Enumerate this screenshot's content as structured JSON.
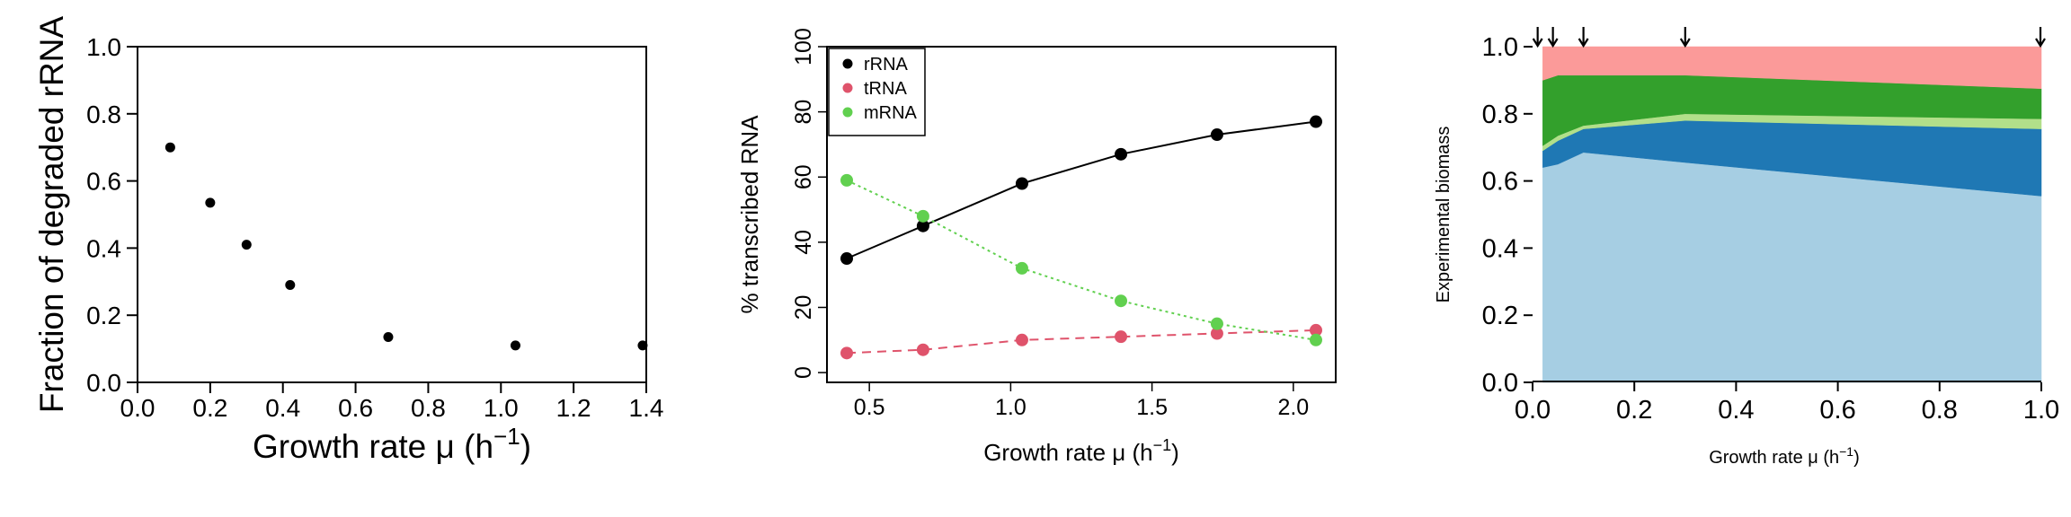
{
  "chart_data": [
    {
      "type": "scatter",
      "xlabel_main": "Growth rate μ (h",
      "xlabel_sup": "−1",
      "xlabel_close": ")",
      "ylabel": "Fraction of degraded rRNA",
      "xlim": [
        0,
        1.4
      ],
      "ylim": [
        0,
        1.0
      ],
      "xticks": [
        "0.0",
        "0.2",
        "0.4",
        "0.6",
        "0.8",
        "1.0",
        "1.2",
        "1.4"
      ],
      "yticks": [
        "0.0",
        "0.2",
        "0.4",
        "0.6",
        "0.8",
        "1.0"
      ],
      "series": [
        {
          "x": [
            0.09,
            0.2,
            0.3,
            0.42,
            0.69,
            1.04,
            1.39
          ],
          "y": [
            0.7,
            0.535,
            0.41,
            0.29,
            0.135,
            0.11,
            0.11
          ]
        }
      ]
    },
    {
      "type": "line",
      "xlabel_main": "Growth rate μ (h",
      "xlabel_sup": "−1",
      "xlabel_close": ")",
      "ylabel": "% transcribed RNA",
      "xlim": [
        0.35,
        2.15
      ],
      "ylim": [
        -3,
        100
      ],
      "xticks": [
        "0.5",
        "1.0",
        "1.5",
        "2.0"
      ],
      "xtick_values": [
        0.5,
        1.0,
        1.5,
        2.0
      ],
      "yticks": [
        "0",
        "20",
        "40",
        "60",
        "80",
        "100"
      ],
      "ytick_values": [
        0,
        20,
        40,
        60,
        80,
        100
      ],
      "legend_position": "top-left",
      "x": [
        0.42,
        0.69,
        1.04,
        1.39,
        1.73,
        2.08
      ],
      "series": [
        {
          "name": "rRNA",
          "color": "#000000",
          "dash": "solid",
          "values": [
            35,
            45,
            58,
            67,
            73,
            77
          ]
        },
        {
          "name": "tRNA",
          "color": "#DF536B",
          "dash": "dashed",
          "values": [
            6,
            7,
            10,
            11,
            12,
            13
          ]
        },
        {
          "name": "mRNA",
          "color": "#61D04F",
          "dash": "dotted",
          "values": [
            59,
            48,
            32,
            22,
            15,
            10
          ]
        }
      ]
    },
    {
      "type": "area",
      "xlabel_main": "Growth rate μ (h",
      "xlabel_sup": "−1",
      "xlabel_close": ")",
      "ylabel": "Experimental biomass",
      "xlim": [
        0,
        1.0
      ],
      "ylim": [
        0,
        1.0
      ],
      "xticks": [
        "0.0",
        "0.2",
        "0.4",
        "0.6",
        "0.8",
        "1.0"
      ],
      "yticks": [
        "0.0",
        "0.2",
        "0.4",
        "0.6",
        "0.8",
        "1.0"
      ],
      "arrows_x": [
        0.01,
        0.04,
        0.1,
        0.3,
        1.0
      ],
      "x": [
        0.02,
        0.05,
        0.1,
        0.3,
        1.0
      ],
      "series": [
        {
          "color": "#A6CEE3",
          "values": [
            0.64,
            0.65,
            0.685,
            0.655,
            0.555
          ]
        },
        {
          "color": "#1F78B4",
          "values": [
            0.05,
            0.07,
            0.07,
            0.125,
            0.2
          ]
        },
        {
          "color": "#B2DF8A",
          "values": [
            0.015,
            0.015,
            0.01,
            0.02,
            0.03
          ]
        },
        {
          "color": "#33A02C",
          "values": [
            0.195,
            0.18,
            0.15,
            0.115,
            0.09
          ]
        },
        {
          "color": "#FB9A99",
          "values": [
            0.1,
            0.085,
            0.085,
            0.085,
            0.125
          ]
        }
      ]
    }
  ]
}
